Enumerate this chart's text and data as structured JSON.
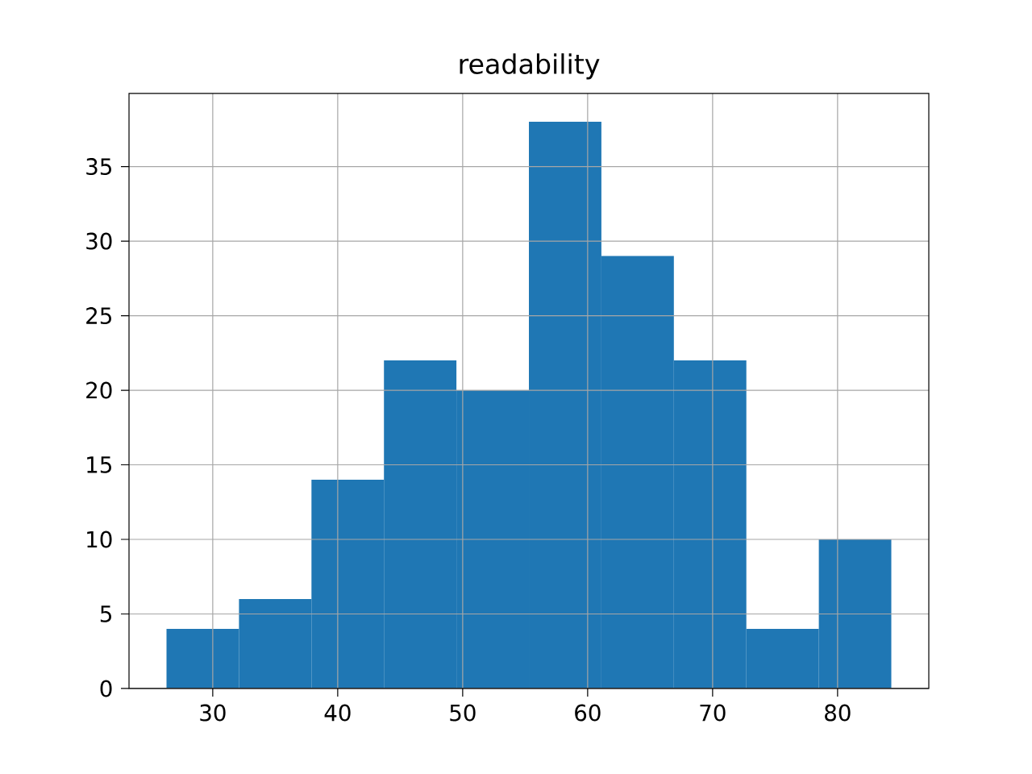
{
  "chart_data": {
    "type": "histogram",
    "title": "readability",
    "bins": [
      26.3,
      32.1,
      37.9,
      43.7,
      49.5,
      55.3,
      61.1,
      66.9,
      72.7,
      78.5,
      84.3
    ],
    "values": [
      4,
      6,
      14,
      22,
      20,
      38,
      29,
      22,
      4,
      10
    ],
    "color": "#1f77b4",
    "xlim": [
      23.3,
      87.3
    ],
    "ylim": [
      0,
      39.9
    ],
    "xticks": [
      30,
      40,
      50,
      60,
      70,
      80
    ],
    "yticks": [
      0,
      5,
      10,
      15,
      20,
      25,
      30,
      35
    ],
    "grid": true
  }
}
